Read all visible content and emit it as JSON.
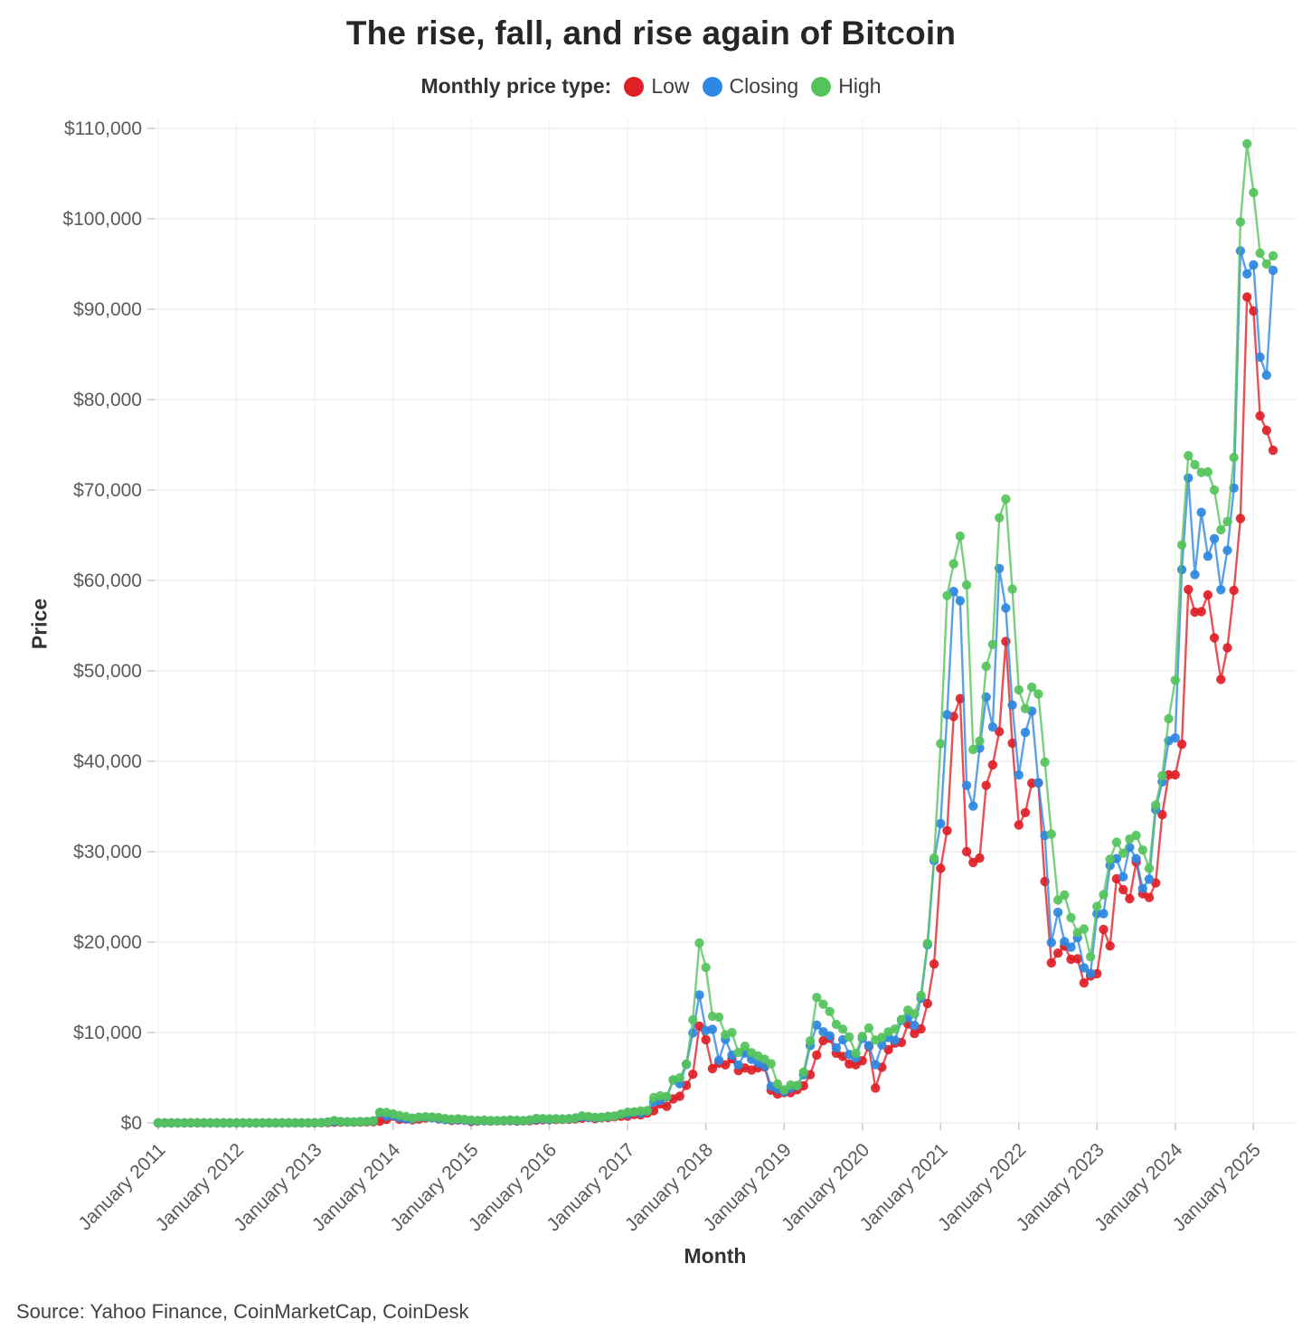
{
  "title": "The rise, fall, and rise again of Bitcoin",
  "legend": {
    "label": "Monthly price type:",
    "items": [
      {
        "name": "Low",
        "color": "#e02027"
      },
      {
        "name": "Closing",
        "color": "#2e87e0"
      },
      {
        "name": "High",
        "color": "#55c35c"
      }
    ]
  },
  "source": "Source: Yahoo Finance, CoinMarketCap, CoinDesk",
  "chart_data": {
    "type": "line",
    "title": "The rise, fall, and rise again of Bitcoin",
    "xlabel": "Month",
    "ylabel": "Price",
    "x_start": "2011-01",
    "x_end": "2025-04",
    "x_interval": "month",
    "ylim": [
      0,
      110000
    ],
    "grid": "horizontal solid light, vertical very faint at year ticks",
    "legend_position": "top-center",
    "y_tick_values": [
      0,
      10000,
      20000,
      30000,
      40000,
      50000,
      60000,
      70000,
      80000,
      90000,
      100000,
      110000
    ],
    "y_tick_labels": [
      "$0",
      "$10,000",
      "$20,000",
      "$30,000",
      "$40,000",
      "$50,000",
      "$60,000",
      "$70,000",
      "$80,000",
      "$90,000",
      "$100,000",
      "$110,000"
    ],
    "x_tick_month_indexes": [
      0,
      12,
      24,
      36,
      48,
      60,
      72,
      84,
      96,
      108,
      120,
      132,
      144,
      156,
      168
    ],
    "x_tick_labels": [
      "January 2011",
      "January 2012",
      "January 2013",
      "January 2014",
      "January 2015",
      "January 2016",
      "January 2017",
      "January 2018",
      "January 2019",
      "January 2020",
      "January 2021",
      "January 2022",
      "January 2023",
      "January 2024",
      "January 2025"
    ],
    "series": [
      {
        "name": "Low",
        "color": "#e02027",
        "values": [
          0.29,
          0.52,
          0.71,
          0.78,
          3,
          8.7,
          11.2,
          7.6,
          4.8,
          2,
          1.9,
          2.8,
          3.8,
          4.2,
          4.5,
          4.7,
          4.8,
          5.1,
          6.4,
          7.5,
          9.9,
          10.3,
          10.3,
          12.4,
          13.2,
          19.8,
          33,
          65.5,
          79,
          88,
          65.5,
          92.6,
          114,
          123,
          198,
          382,
          735,
          400,
          420,
          340,
          425,
          540,
          565,
          455,
          365,
          275,
          320,
          300,
          157,
          212,
          236,
          210,
          228,
          220,
          250,
          198,
          225,
          236,
          295,
          345,
          350,
          365,
          385,
          414,
          440,
          520,
          605,
          465,
          570,
          600,
          670,
          740,
          750,
          920,
          890,
          1080,
          1350,
          2100,
          1830,
          2650,
          2950,
          4160,
          5380,
          10700,
          9200,
          6000,
          6600,
          6420,
          7080,
          5780,
          6070,
          5860,
          6100,
          6190,
          3620,
          3190,
          3350,
          3350,
          3670,
          4100,
          5330,
          7510,
          9100,
          9360,
          7710,
          7360,
          6520,
          6430,
          6870,
          8450,
          3860,
          6160,
          8100,
          8820,
          8910,
          10950,
          9880,
          10390,
          13200,
          17580,
          28150,
          32320,
          44950,
          46930,
          30000,
          28800,
          29300,
          37330,
          39600,
          43280,
          53260,
          42000,
          32950,
          34320,
          37580,
          37600,
          26700,
          17710,
          18780,
          19560,
          18100,
          18150,
          15480,
          16260,
          16500,
          21400,
          19570,
          27000,
          25800,
          24800,
          28850,
          25350,
          24930,
          26540,
          34100,
          38500,
          38500,
          41880,
          59000,
          56500,
          56550,
          58400,
          53650,
          49050,
          52550,
          58900,
          66850,
          91350,
          89800,
          78200,
          76600,
          74400
        ]
      },
      {
        "name": "Closing",
        "color": "#2e87e0",
        "values": [
          0.52,
          0.86,
          0.79,
          3,
          8.7,
          16.1,
          13.1,
          8.2,
          5,
          3.2,
          3,
          4.3,
          5.5,
          4.9,
          4.9,
          5,
          5.2,
          6.7,
          9.4,
          10.2,
          12.4,
          11.2,
          12.6,
          13.4,
          20.4,
          33.4,
          93,
          139,
          128,
          97.5,
          106,
          141,
          141,
          204,
          1120,
          754,
          800,
          565,
          454,
          446,
          622,
          635,
          583,
          475,
          375,
          338,
          375,
          320,
          218,
          254,
          244,
          236,
          230,
          263,
          284,
          230,
          236,
          314,
          377,
          430,
          369,
          437,
          416,
          448,
          531,
          673,
          624,
          575,
          608,
          700,
          745,
          964,
          970,
          1190,
          1080,
          1350,
          2300,
          2480,
          2870,
          4740,
          4340,
          6470,
          9950,
          14160,
          10220,
          10360,
          6930,
          9240,
          7500,
          6400,
          7730,
          7030,
          6630,
          6300,
          4040,
          3740,
          3440,
          3820,
          4100,
          5320,
          8560,
          10820,
          10080,
          9630,
          8310,
          9200,
          7570,
          7190,
          9350,
          8550,
          6440,
          8630,
          9450,
          9140,
          11350,
          11650,
          10780,
          13800,
          19700,
          29000,
          33110,
          45160,
          58780,
          57750,
          37330,
          35040,
          41460,
          47110,
          43790,
          61320,
          56950,
          46220,
          38480,
          43190,
          45540,
          37630,
          31790,
          19940,
          23290,
          20050,
          19430,
          20490,
          17160,
          16540,
          23130,
          23140,
          28470,
          29230,
          27220,
          30470,
          29230,
          25930,
          26960,
          34660,
          37720,
          42270,
          42580,
          61200,
          71330,
          60640,
          67530,
          62680,
          64620,
          58970,
          63330,
          70220,
          96450,
          93900,
          94900,
          84700,
          82700,
          94300
        ]
      },
      {
        "name": "High",
        "color": "#55c35c",
        "values": [
          0.55,
          1.1,
          0.97,
          3.5,
          8.9,
          31.9,
          17.5,
          13.5,
          8.9,
          5.1,
          3.5,
          5,
          7.2,
          6.1,
          5.5,
          5.6,
          5.3,
          6.9,
          9.5,
          13.9,
          12.9,
          12.8,
          12.9,
          14,
          21.1,
          34.5,
          95.7,
          266,
          146,
          129,
          110,
          146,
          147,
          233,
          1180,
          1150,
          1000,
          830,
          700,
          530,
          630,
          680,
          655,
          600,
          480,
          400,
          460,
          380,
          320,
          265,
          300,
          262,
          248,
          268,
          318,
          288,
          248,
          334,
          502,
          467,
          463,
          448,
          444,
          468,
          550,
          780,
          706,
          625,
          630,
          720,
          755,
          980,
          1190,
          1220,
          1330,
          1360,
          2800,
          3000,
          2920,
          4765,
          4980,
          6500,
          11400,
          19900,
          17200,
          11790,
          11700,
          9760,
          9990,
          7790,
          8480,
          7770,
          7410,
          7040,
          6540,
          4300,
          3660,
          4190,
          4140,
          5620,
          9070,
          13880,
          13130,
          12320,
          10900,
          10370,
          9500,
          7690,
          9570,
          10500,
          9170,
          9460,
          10070,
          10380,
          11440,
          12470,
          12050,
          14100,
          19860,
          29300,
          41950,
          58330,
          61840,
          64900,
          59500,
          41300,
          42240,
          50500,
          52920,
          66930,
          69000,
          59040,
          47900,
          45820,
          48190,
          47440,
          39900,
          31950,
          24650,
          25200,
          22700,
          21050,
          21450,
          18370,
          23950,
          25250,
          29160,
          31050,
          29820,
          31400,
          31800,
          30180,
          28140,
          35150,
          38400,
          44700,
          48970,
          63930,
          73800,
          72800,
          71950,
          72000,
          70000,
          65600,
          66500,
          73600,
          99650,
          108300,
          102900,
          96200,
          95000,
          95900
        ]
      }
    ]
  }
}
